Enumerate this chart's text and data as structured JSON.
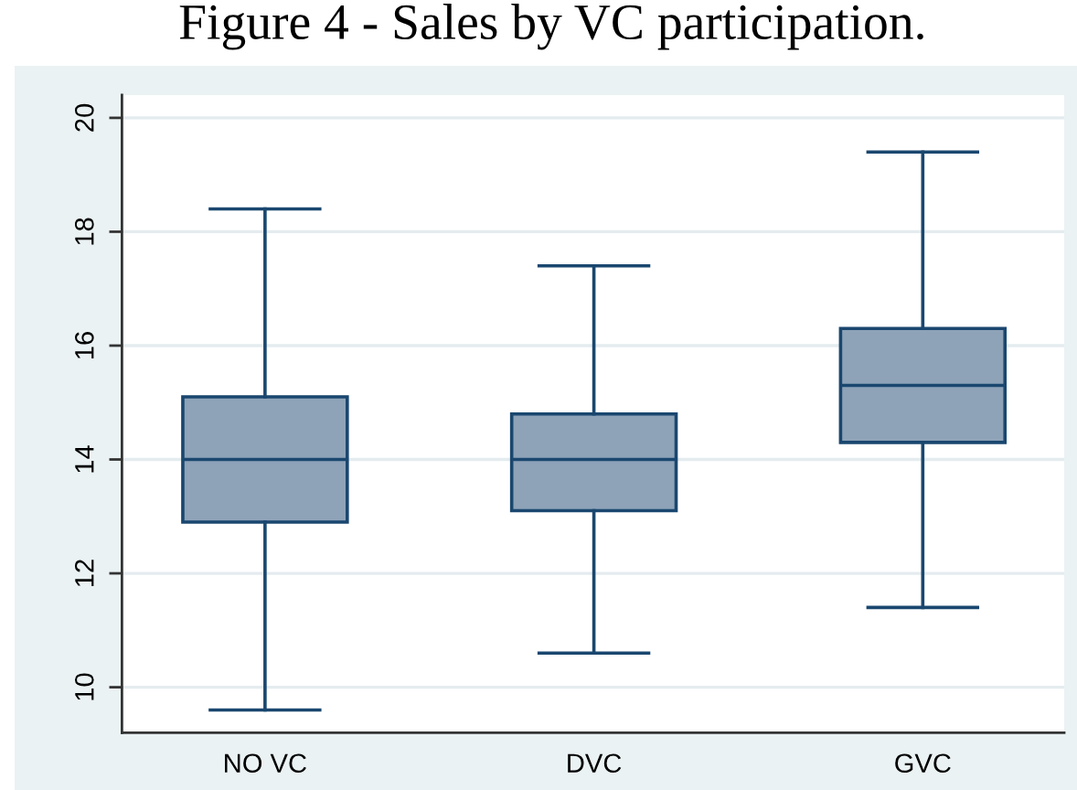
{
  "chart_data": {
    "type": "box",
    "title": "Figure 4 - Sales by VC participation.",
    "categories": [
      "NO VC",
      "DVC",
      "GVC"
    ],
    "series": [
      {
        "color": "#8ea3b8",
        "boxes": [
          {
            "low": 9.6,
            "q1": 12.9,
            "median": 14.0,
            "q3": 15.1,
            "high": 18.4
          },
          {
            "low": 10.6,
            "q1": 13.1,
            "median": 14.0,
            "q3": 14.8,
            "high": 17.4
          },
          {
            "low": 11.4,
            "q1": 14.3,
            "median": 15.3,
            "q3": 16.3,
            "high": 19.4
          }
        ]
      }
    ],
    "ylim": [
      9.2,
      20.4
    ],
    "yticks": [
      10,
      12,
      14,
      16,
      18,
      20
    ],
    "grid": "y"
  }
}
